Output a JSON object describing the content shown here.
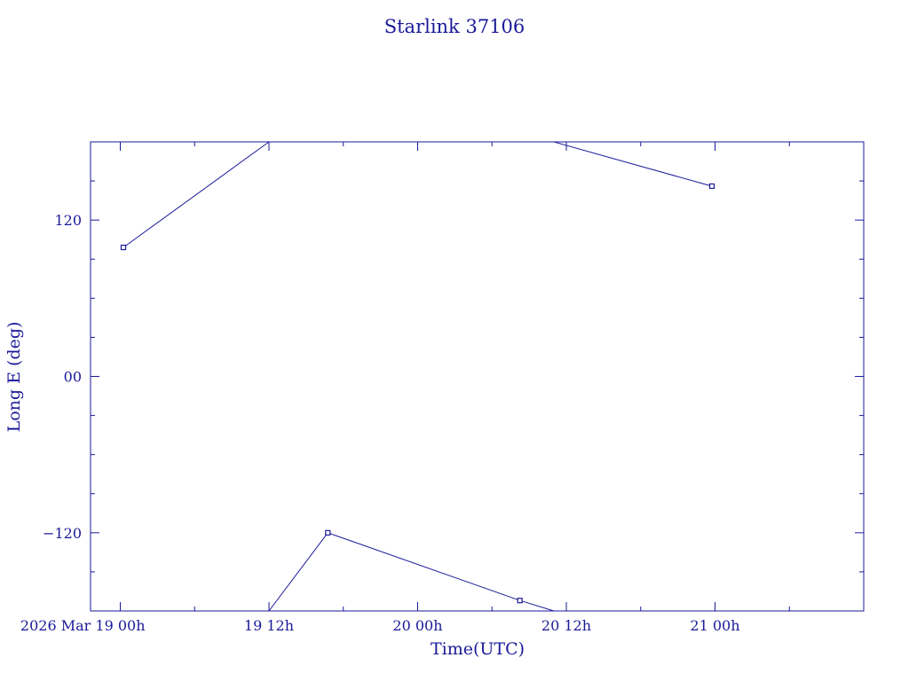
{
  "chart_data": {
    "type": "line",
    "title": "Starlink 37106",
    "xlabel": "Time(UTC)",
    "ylabel": "Long E (deg)",
    "xlim": [
      "2026-03-18T21:36",
      "2026-03-21T12:00"
    ],
    "ylim": [
      -180,
      180
    ],
    "x_major_ticks": [
      {
        "t": "2026-03-19T00:00",
        "label": "2026 Mar 19  00h"
      },
      {
        "t": "2026-03-19T12:00",
        "label": "19  12h"
      },
      {
        "t": "2026-03-20T00:00",
        "label": "20  00h"
      },
      {
        "t": "2026-03-20T12:00",
        "label": "20  12h"
      },
      {
        "t": "2026-03-21T00:00",
        "label": "21  00h"
      }
    ],
    "y_major_ticks": [
      {
        "v": 120,
        "label": "120"
      },
      {
        "v": 0,
        "label": "00"
      },
      {
        "v": -120,
        "label": "−120"
      }
    ],
    "series": [
      {
        "segments": [
          [
            {
              "t": "2026-03-19T00:15",
              "y": 99
            },
            {
              "t": "2026-03-19T12:00",
              "y": 180
            }
          ],
          [
            {
              "t": "2026-03-19T12:00",
              "y": -180
            },
            {
              "t": "2026-03-19T16:45",
              "y": -120
            },
            {
              "t": "2026-03-20T08:15",
              "y": -172
            },
            {
              "t": "2026-03-20T11:00",
              "y": -180
            }
          ],
          [
            {
              "t": "2026-03-20T11:00",
              "y": 180
            },
            {
              "t": "2026-03-20T23:45",
              "y": 146
            }
          ]
        ],
        "markers": [
          {
            "t": "2026-03-19T00:15",
            "y": 99
          },
          {
            "t": "2026-03-19T16:45",
            "y": -120
          },
          {
            "t": "2026-03-20T08:15",
            "y": -172
          },
          {
            "t": "2026-03-20T23:45",
            "y": 146
          }
        ]
      }
    ],
    "grid": false
  }
}
